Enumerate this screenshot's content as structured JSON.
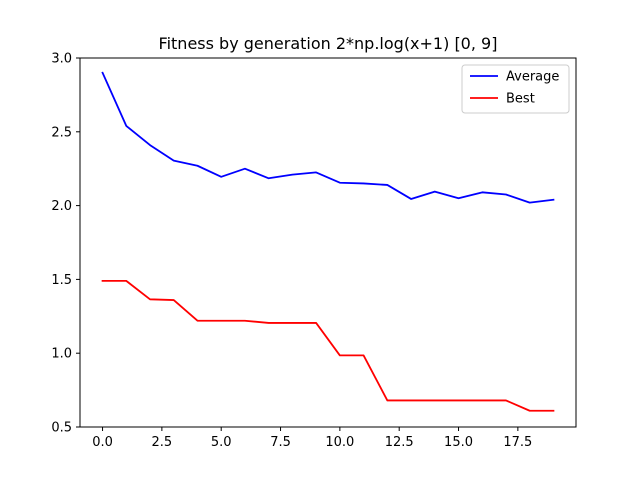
{
  "chart_data": {
    "type": "line",
    "title": "Fitness by generation 2*np.log(x+1) [0, 9]",
    "xlabel": "",
    "ylabel": "",
    "xlim": [
      -0.95,
      19.95
    ],
    "ylim": [
      0.5,
      3.0
    ],
    "x_ticks": [
      0,
      2.5,
      5,
      7.5,
      10,
      12.5,
      15,
      17.5
    ],
    "x_tick_labels": [
      "0.0",
      "2.5",
      "5.0",
      "7.5",
      "10.0",
      "12.5",
      "15.0",
      "17.5"
    ],
    "y_ticks": [
      0.5,
      1.0,
      1.5,
      2.0,
      2.5,
      3.0
    ],
    "y_tick_labels": [
      "0.5",
      "1.0",
      "1.5",
      "2.0",
      "2.5",
      "3.0"
    ],
    "grid": false,
    "legend_position": "top-right",
    "x": [
      0,
      1,
      2,
      3,
      4,
      5,
      6,
      7,
      8,
      9,
      10,
      11,
      12,
      13,
      14,
      15,
      16,
      17,
      18,
      19
    ],
    "series": [
      {
        "name": "Average",
        "color": "#0000ff",
        "values": [
          2.9,
          2.54,
          2.41,
          2.305,
          2.27,
          2.195,
          2.25,
          2.185,
          2.21,
          2.225,
          2.155,
          2.15,
          2.14,
          2.045,
          2.095,
          2.05,
          2.09,
          2.075,
          2.02,
          2.04
        ]
      },
      {
        "name": "Best",
        "color": "#ff0000",
        "values": [
          1.49,
          1.49,
          1.365,
          1.36,
          1.22,
          1.22,
          1.22,
          1.205,
          1.205,
          1.205,
          0.985,
          0.985,
          0.68,
          0.68,
          0.68,
          0.68,
          0.68,
          0.68,
          0.61,
          0.61
        ]
      }
    ]
  }
}
